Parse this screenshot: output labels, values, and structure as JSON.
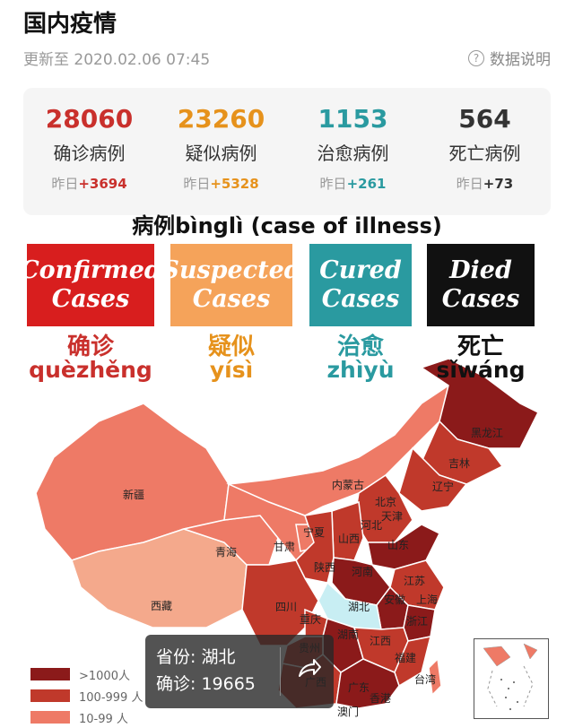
{
  "header": {
    "title": "国内疫情",
    "updated": "更新至 2020.02.06 07:45",
    "help_label": "数据说明",
    "help_icon": "question-circle-icon"
  },
  "stats": [
    {
      "value": "28060",
      "label": "确诊病例",
      "yest_prefix": "昨日",
      "yest_delta": "+3694",
      "color": "#c9302c"
    },
    {
      "value": "23260",
      "label": "疑似病例",
      "yest_prefix": "昨日",
      "yest_delta": "+5328",
      "color": "#e6921c"
    },
    {
      "value": "1153",
      "label": "治愈病例",
      "yest_prefix": "昨日",
      "yest_delta": "+261",
      "color": "#2a9aa0"
    },
    {
      "value": "564",
      "label": "死亡病例",
      "yest_prefix": "昨日",
      "yest_delta": "+73",
      "color": "#333333"
    }
  ],
  "overlay": {
    "title": "病例bìnglì (case of illness)",
    "categories": [
      {
        "line1": "Confirmed",
        "line2": "Cases",
        "hanzi": "确诊",
        "pinyin": "quèzhěng",
        "color": "#d81e1e",
        "text_color": "#c9302c"
      },
      {
        "line1": "Suspected",
        "line2": "Cases",
        "hanzi": "疑似",
        "pinyin": "yísì",
        "color": "#f5a35a",
        "text_color": "#e6921c"
      },
      {
        "line1": "Cured",
        "line2": "Cases",
        "hanzi": "治愈",
        "pinyin": "zhìyù",
        "color": "#2a9aa0",
        "text_color": "#2a9aa0"
      },
      {
        "line1": "Died",
        "line2": "Cases",
        "hanzi": "死亡",
        "pinyin": "sǐwáng",
        "color": "#111111",
        "text_color": "#111111"
      }
    ]
  },
  "map": {
    "provinces": [
      "黑龙江",
      "吉林",
      "辽宁",
      "内蒙古",
      "北京",
      "天津",
      "河北",
      "山西",
      "山东",
      "宁夏",
      "甘肃",
      "新疆",
      "青海",
      "西藏",
      "陕西",
      "河南",
      "江苏",
      "上海",
      "安徽",
      "湖北",
      "四川",
      "重庆",
      "浙江",
      "湖南",
      "江西",
      "福建",
      "贵州",
      "广西",
      "广东",
      "香港",
      "澳门",
      "台湾"
    ],
    "colors": {
      "level1": "#8b1a1a",
      "level2": "#c0392b",
      "level3": "#ee7a66",
      "level4": "#f4a98c",
      "hubei": "#c8eef3"
    }
  },
  "tooltip": {
    "province_label": "省份:",
    "province": "湖北",
    "confirmed_label": "确诊:",
    "confirmed": "19665",
    "share_icon": "share-icon"
  },
  "scale": [
    {
      "label": ">1000人",
      "color": "#8b1a1a"
    },
    {
      "label": "100-999 人",
      "color": "#c0392b"
    },
    {
      "label": "10-99 人",
      "color": "#ee7a66"
    }
  ]
}
